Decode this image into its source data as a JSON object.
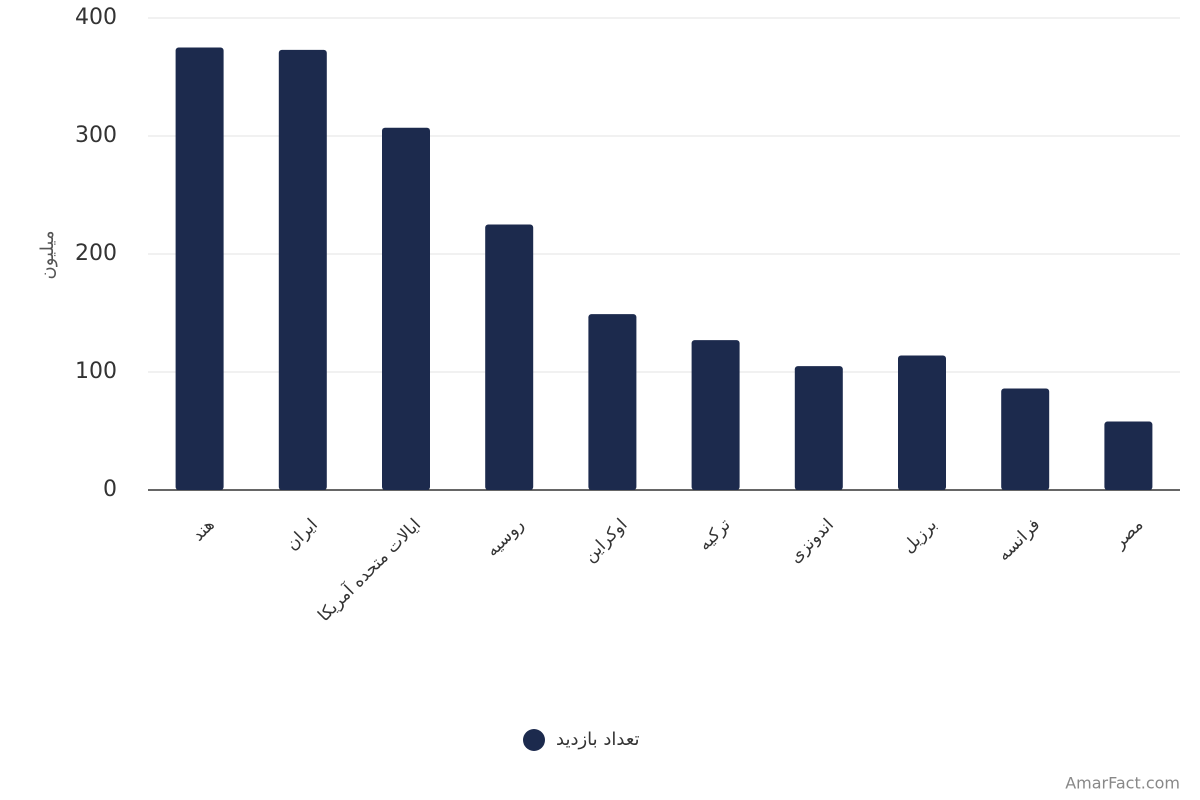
{
  "chart_data": {
    "type": "bar",
    "y_label": "میلیون",
    "categories": [
      "هند",
      "ایران",
      "ایالات متحده آمریکا",
      "روسیه",
      "اوکراین",
      "ترکیه",
      "اندونزی",
      "برزیل",
      "فرانسه",
      "مصر"
    ],
    "series": [
      {
        "name": "تعداد بازدید",
        "color": "#1c2a4d",
        "values": [
          375,
          373,
          307,
          225,
          149,
          127,
          105,
          114,
          86,
          58
        ]
      }
    ],
    "ylim": [
      0,
      400
    ],
    "yticks": [
      0,
      100,
      200,
      300,
      400
    ],
    "grid": true,
    "watermark": "AmarFact.com"
  }
}
